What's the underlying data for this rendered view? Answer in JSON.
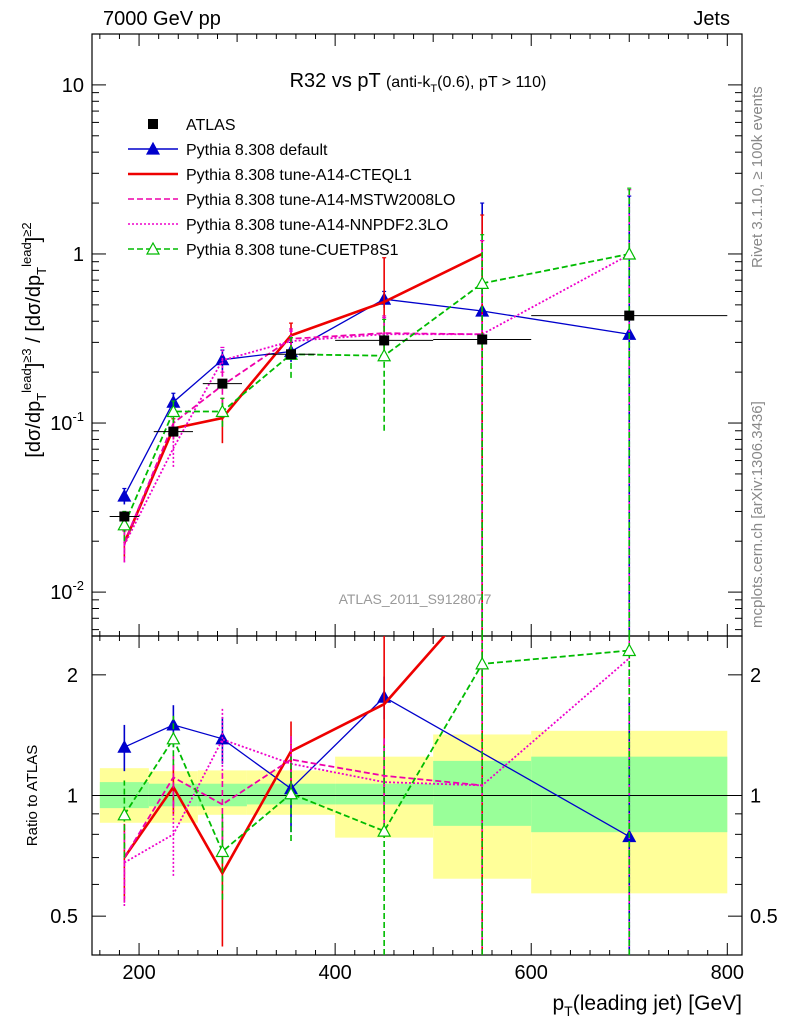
{
  "header": {
    "left_label": "7000 GeV pp",
    "right_label": "Jets"
  },
  "side_labels": {
    "rivet": "Rivet 3.1.10, ≥ 100k events",
    "mcplots": "mcplots.cern.ch [arXiv:1306.3436]"
  },
  "watermark": "ATLAS_2011_S9128077",
  "chart_data": [
    {
      "type": "line",
      "title_main": "R32 vs pT",
      "title_sub": "(anti-k_T(0.6), pT > 110)",
      "xlabel": "p_T(leading jet) [GeV]",
      "ylabel": "[dσ/dp_T^lead]^{≥3} / [dσ/dp_T^lead]^{≥2}",
      "xlim": [
        152,
        815
      ],
      "ylim": [
        0.0055,
        20
      ],
      "yscale": "log",
      "x_ticks": [
        200,
        400,
        600,
        800
      ],
      "y_tick_labels": [
        "10^-2",
        "10^-1",
        "1",
        "10"
      ],
      "legend_position": "top-left",
      "data": {
        "name": "ATLAS",
        "x": [
          185,
          235,
          285,
          355,
          450,
          550,
          700
        ],
        "y": [
          0.028,
          0.089,
          0.171,
          0.255,
          0.308,
          0.312,
          0.432
        ],
        "xerr": [
          15,
          20,
          20,
          25,
          50,
          50,
          100
        ]
      },
      "series": [
        {
          "name": "Pythia 8.308 default",
          "color": "#0000cc",
          "dash": "solid",
          "marker": "filled-triangle",
          "x": [
            185,
            235,
            285,
            355,
            450,
            550,
            700
          ],
          "y": [
            0.037,
            0.133,
            0.237,
            0.265,
            0.54,
            0.46,
            0.335
          ],
          "err_lo": [
            0.033,
            0.117,
            0.205,
            0.23,
            0.48,
            0.0001,
            0.0001
          ],
          "err_hi": [
            0.041,
            0.15,
            0.27,
            0.3,
            0.6,
            2.0,
            2.2
          ]
        },
        {
          "name": "Pythia 8.308 tune-A14-CTEQL1",
          "color": "#ee0000",
          "dash": "solid",
          "marker": "none",
          "x": [
            185,
            235,
            285,
            355,
            450,
            550
          ],
          "y": [
            0.0195,
            0.093,
            0.107,
            0.33,
            0.52,
            1.0
          ],
          "err_lo": [
            0.016,
            0.08,
            0.076,
            0.27,
            0.25,
            0.0001
          ],
          "err_hi": [
            0.023,
            0.106,
            0.14,
            0.39,
            0.95,
            1.7
          ]
        },
        {
          "name": "Pythia 8.308 tune-A14-MSTW2008LO",
          "color": "#ee00aa",
          "dash": "dashed",
          "marker": "none",
          "x": [
            185,
            235,
            285,
            355,
            450,
            550
          ],
          "y": [
            0.0195,
            0.1,
            0.167,
            0.315,
            0.34,
            0.335
          ],
          "err_lo": [
            0.015,
            0.08,
            0.13,
            0.27,
            0.25,
            0.0001
          ],
          "err_hi": [
            0.024,
            0.12,
            0.2,
            0.36,
            0.43,
            1.2
          ]
        },
        {
          "name": "Pythia 8.308 tune-A14-NNPDF2.3LO",
          "color": "#ee00cc",
          "dash": "dotted",
          "marker": "none",
          "x": [
            185,
            235,
            285,
            355,
            450,
            550,
            700
          ],
          "y": [
            0.019,
            0.071,
            0.235,
            0.305,
            0.335,
            0.335,
            0.99
          ],
          "err_lo": [
            0.015,
            0.055,
            0.19,
            0.26,
            0.25,
            0.0001,
            0.0001
          ],
          "err_hi": [
            0.023,
            0.087,
            0.28,
            0.35,
            0.42,
            1.2,
            2.4
          ]
        },
        {
          "name": "Pythia 8.308 tune-CUETP8S1",
          "color": "#00bb00",
          "dash": "dashed",
          "marker": "open-triangle",
          "x": [
            185,
            235,
            285,
            355,
            450,
            550,
            700
          ],
          "y": [
            0.025,
            0.117,
            0.117,
            0.255,
            0.25,
            0.67,
            1.0
          ],
          "err_lo": [
            0.02,
            0.1,
            0.095,
            0.185,
            0.09,
            0.0001,
            0.0001
          ],
          "err_hi": [
            0.03,
            0.135,
            0.14,
            0.32,
            0.41,
            1.3,
            2.45
          ]
        }
      ]
    },
    {
      "type": "line",
      "ylabel": "Ratio to ATLAS",
      "xlabel": "p_T(leading jet) [GeV]",
      "xlim": [
        152,
        815
      ],
      "ylim": [
        0.4,
        2.5
      ],
      "yscale": "log",
      "y_ticks": [
        0.5,
        1,
        2
      ],
      "x_ticks": [
        200,
        400,
        600,
        800
      ],
      "bands": {
        "x_edges": [
          160,
          210,
          260,
          310,
          400,
          500,
          600,
          800
        ],
        "stat_lo": [
          0.93,
          0.94,
          0.94,
          0.95,
          0.95,
          0.84,
          0.81
        ],
        "stat_hi": [
          1.08,
          1.07,
          1.07,
          1.07,
          1.07,
          1.22,
          1.25
        ],
        "total_lo": [
          0.855,
          0.855,
          0.895,
          0.895,
          0.785,
          0.62,
          0.57
        ],
        "total_hi": [
          1.17,
          1.15,
          1.155,
          1.155,
          1.25,
          1.42,
          1.45
        ]
      },
      "series": [
        {
          "name": "Pythia 8.308 default",
          "color": "#0000cc",
          "x": [
            185,
            235,
            285,
            355,
            450,
            700
          ],
          "y": [
            1.32,
            1.5,
            1.385,
            1.04,
            1.76,
            0.79
          ],
          "err_lo": [
            1.15,
            1.32,
            1.2,
            0.81,
            1.55,
            0.3
          ],
          "err_hi": [
            1.5,
            1.68,
            1.57,
            1.27,
            1.98,
            1.75
          ]
        },
        {
          "name": "Pythia 8.308 tune-A14-CTEQL1",
          "color": "#ee0000",
          "x": [
            185,
            235,
            285,
            355,
            450,
            550
          ],
          "y": [
            0.7,
            1.05,
            0.64,
            1.29,
            1.69,
            3.2
          ],
          "err_lo": [
            0.55,
            0.9,
            0.42,
            1.05,
            0.9,
            0.3
          ],
          "err_hi": [
            0.85,
            1.2,
            0.86,
            1.53,
            3.0,
            5.0
          ]
        },
        {
          "name": "Pythia 8.308 tune-A14-MSTW2008LO",
          "color": "#ee00aa",
          "x": [
            185,
            235,
            285,
            355,
            450,
            550
          ],
          "y": [
            0.7,
            1.11,
            0.95,
            1.23,
            1.12,
            1.06
          ],
          "err_lo": [
            0.54,
            0.94,
            0.77,
            1.05,
            0.8,
            0.3
          ],
          "err_hi": [
            0.86,
            1.28,
            1.13,
            1.41,
            1.4,
            4.0
          ]
        },
        {
          "name": "Pythia 8.308 tune-A14-NNPDF2.3LO",
          "color": "#ee00cc",
          "x": [
            185,
            235,
            285,
            355,
            450,
            550,
            700
          ],
          "y": [
            0.68,
            0.8,
            1.38,
            1.2,
            1.08,
            1.06,
            2.2
          ],
          "err_lo": [
            0.53,
            0.63,
            1.1,
            1.02,
            0.79,
            0.3,
            0.3
          ],
          "err_hi": [
            0.83,
            0.97,
            1.66,
            1.38,
            1.37,
            4.0,
            5.0
          ]
        },
        {
          "name": "Pythia 8.308 tune-CUETP8S1",
          "color": "#00bb00",
          "x": [
            185,
            235,
            285,
            355,
            450,
            550,
            700
          ],
          "y": [
            0.895,
            1.385,
            0.725,
            1.01,
            0.815,
            2.13,
            2.3
          ],
          "err_lo": [
            0.7,
            1.19,
            0.55,
            0.77,
            0.3,
            0.3,
            0.3
          ],
          "err_hi": [
            1.09,
            1.58,
            0.9,
            1.25,
            1.33,
            4.0,
            5.0
          ]
        }
      ]
    }
  ]
}
